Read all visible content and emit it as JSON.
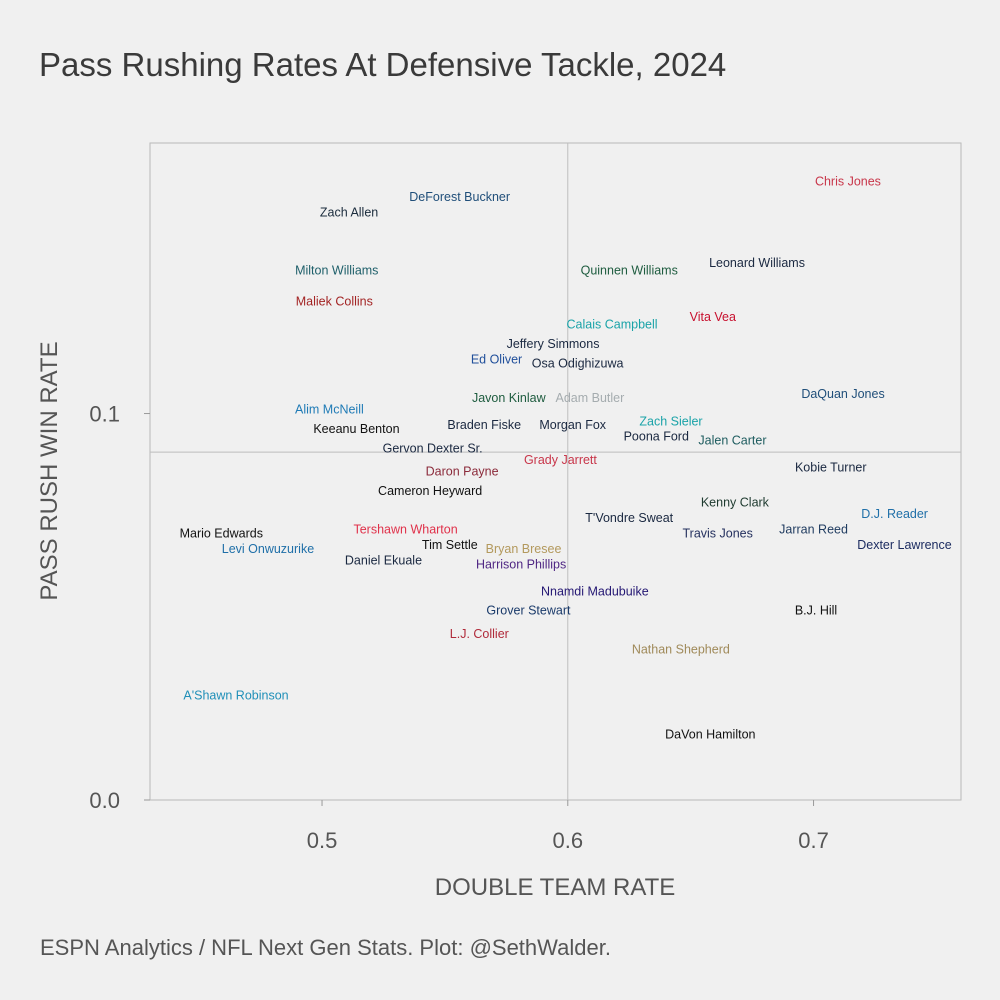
{
  "title": "Pass Rushing Rates At Defensive Tackle, 2024",
  "caption": "ESPN Analytics / NFL Next Gen Stats. Plot: @SethWalder.",
  "chart_data": {
    "type": "scatter",
    "title": "Pass Rushing Rates At Defensive Tackle, 2024",
    "xlabel": "DOUBLE TEAM RATE",
    "ylabel": "PASS RUSH WIN RATE",
    "xlim": [
      0.43,
      0.76
    ],
    "ylim": [
      0.0,
      0.17
    ],
    "x_ticks": [
      0.5,
      0.6,
      0.7
    ],
    "y_ticks": [
      0.0,
      0.1
    ],
    "x_tick_labels": [
      "0.5",
      "0.6",
      "0.7"
    ],
    "y_tick_labels": [
      "0.0",
      "0.1"
    ],
    "reference_lines": {
      "x": 0.6,
      "y": 0.09
    },
    "grid": false,
    "points": [
      {
        "label": "Chris Jones",
        "x": 0.714,
        "y": 0.16,
        "color": "#c8364a"
      },
      {
        "label": "DeForest Buckner",
        "x": 0.556,
        "y": 0.156,
        "color": "#1f4e79"
      },
      {
        "label": "Zach Allen",
        "x": 0.511,
        "y": 0.152,
        "color": "#1a2b3c"
      },
      {
        "label": "Leonard Williams",
        "x": 0.677,
        "y": 0.139,
        "color": "#1a2840"
      },
      {
        "label": "Milton Williams",
        "x": 0.506,
        "y": 0.137,
        "color": "#1e5f6a"
      },
      {
        "label": "Quinnen Williams",
        "x": 0.625,
        "y": 0.137,
        "color": "#1e5c3f"
      },
      {
        "label": "Maliek Collins",
        "x": 0.505,
        "y": 0.129,
        "color": "#a32424"
      },
      {
        "label": "Vita Vea",
        "x": 0.659,
        "y": 0.125,
        "color": "#c8102e"
      },
      {
        "label": "Calais Campbell",
        "x": 0.618,
        "y": 0.123,
        "color": "#1aa3a8"
      },
      {
        "label": "Jeffery Simmons",
        "x": 0.594,
        "y": 0.118,
        "color": "#1a2840"
      },
      {
        "label": "Ed Oliver",
        "x": 0.571,
        "y": 0.114,
        "color": "#1f4e9a"
      },
      {
        "label": "Osa Odighizuwa",
        "x": 0.604,
        "y": 0.113,
        "color": "#1a2840"
      },
      {
        "label": "Javon Kinlaw",
        "x": 0.576,
        "y": 0.104,
        "color": "#1e5c3f"
      },
      {
        "label": "Adam Butler",
        "x": 0.609,
        "y": 0.104,
        "color": "#a5acaf"
      },
      {
        "label": "DaQuan Jones",
        "x": 0.712,
        "y": 0.105,
        "color": "#1f4e79"
      },
      {
        "label": "Alim McNeill",
        "x": 0.503,
        "y": 0.101,
        "color": "#1f7bb6"
      },
      {
        "label": "Keeanu Benton",
        "x": 0.514,
        "y": 0.096,
        "color": "#111111"
      },
      {
        "label": "Braden Fiske",
        "x": 0.566,
        "y": 0.097,
        "color": "#1a2840"
      },
      {
        "label": "Morgan Fox",
        "x": 0.602,
        "y": 0.097,
        "color": "#1a2840"
      },
      {
        "label": "Zach Sieler",
        "x": 0.642,
        "y": 0.098,
        "color": "#1aa3a8"
      },
      {
        "label": "Poona Ford",
        "x": 0.636,
        "y": 0.094,
        "color": "#1a2840"
      },
      {
        "label": "Jalen Carter",
        "x": 0.667,
        "y": 0.093,
        "color": "#1e5c5f"
      },
      {
        "label": "Gervon Dexter Sr.",
        "x": 0.545,
        "y": 0.091,
        "color": "#1a2840"
      },
      {
        "label": "Grady Jarrett",
        "x": 0.597,
        "y": 0.088,
        "color": "#c8364a"
      },
      {
        "label": "Kobie Turner",
        "x": 0.707,
        "y": 0.086,
        "color": "#1a2840"
      },
      {
        "label": "Daron Payne",
        "x": 0.557,
        "y": 0.085,
        "color": "#8b2a3a"
      },
      {
        "label": "Cameron Heyward",
        "x": 0.544,
        "y": 0.08,
        "color": "#111111"
      },
      {
        "label": "Kenny Clark",
        "x": 0.668,
        "y": 0.077,
        "color": "#1e3a2f"
      },
      {
        "label": "D.J. Reader",
        "x": 0.733,
        "y": 0.074,
        "color": "#1f6fa8"
      },
      {
        "label": "T'Vondre Sweat",
        "x": 0.625,
        "y": 0.073,
        "color": "#1a2840"
      },
      {
        "label": "Mario Edwards",
        "x": 0.459,
        "y": 0.069,
        "color": "#111111"
      },
      {
        "label": "Tershawn Wharton",
        "x": 0.534,
        "y": 0.07,
        "color": "#e0314a"
      },
      {
        "label": "Travis Jones",
        "x": 0.661,
        "y": 0.069,
        "color": "#24305e"
      },
      {
        "label": "Jarran Reed",
        "x": 0.7,
        "y": 0.07,
        "color": "#1e3a5f"
      },
      {
        "label": "Tim Settle",
        "x": 0.552,
        "y": 0.066,
        "color": "#111111"
      },
      {
        "label": "Levi Onwuzurike",
        "x": 0.478,
        "y": 0.065,
        "color": "#1f6fa8"
      },
      {
        "label": "Dexter Lawrence",
        "x": 0.737,
        "y": 0.066,
        "color": "#1a2a5f"
      },
      {
        "label": "Bryan Bresee",
        "x": 0.582,
        "y": 0.065,
        "color": "#b3995d"
      },
      {
        "label": "Daniel Ekuale",
        "x": 0.525,
        "y": 0.062,
        "color": "#1a2840"
      },
      {
        "label": "Harrison Phillips",
        "x": 0.581,
        "y": 0.061,
        "color": "#4f2683"
      },
      {
        "label": "Nnamdi Madubuike",
        "x": 0.611,
        "y": 0.054,
        "color": "#241773"
      },
      {
        "label": "Grover Stewart",
        "x": 0.584,
        "y": 0.049,
        "color": "#1a3a6a"
      },
      {
        "label": "B.J. Hill",
        "x": 0.701,
        "y": 0.049,
        "color": "#111111"
      },
      {
        "label": "L.J. Collier",
        "x": 0.564,
        "y": 0.043,
        "color": "#b02a3a"
      },
      {
        "label": "Nathan Shepherd",
        "x": 0.646,
        "y": 0.039,
        "color": "#a08a5a"
      },
      {
        "label": "A'Shawn Robinson",
        "x": 0.465,
        "y": 0.027,
        "color": "#1f8fb8"
      },
      {
        "label": "DaVon Hamilton",
        "x": 0.658,
        "y": 0.017,
        "color": "#111111"
      }
    ]
  }
}
